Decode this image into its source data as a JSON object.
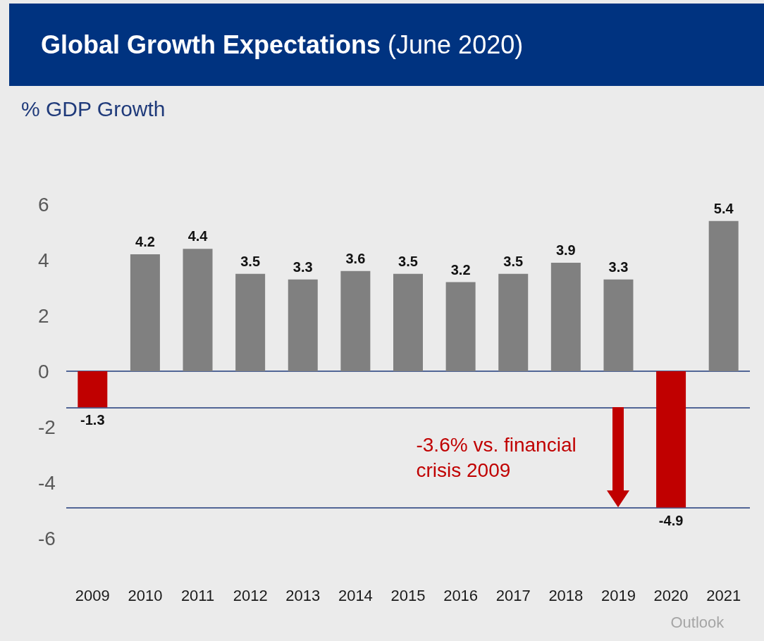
{
  "chart_data": {
    "type": "bar",
    "title": "Global Growth Expectations",
    "subtitle": "(June 2020)",
    "ylabel": "% GDP Growth",
    "categories": [
      "2009",
      "2010",
      "2011",
      "2012",
      "2013",
      "2014",
      "2015",
      "2016",
      "2017",
      "2018",
      "2019",
      "2020",
      "2021"
    ],
    "values": [
      -1.3,
      4.2,
      4.4,
      3.5,
      3.3,
      3.6,
      3.5,
      3.2,
      3.5,
      3.9,
      3.3,
      -4.9,
      5.4
    ],
    "colors": [
      "#c00000",
      "#808080",
      "#808080",
      "#808080",
      "#808080",
      "#808080",
      "#808080",
      "#808080",
      "#808080",
      "#808080",
      "#808080",
      "#c00000",
      "#808080"
    ],
    "ylim": [
      -6,
      6
    ],
    "yticks": [
      -6,
      -4,
      -2,
      0,
      2,
      4,
      6
    ],
    "grid": false,
    "data_labels": true,
    "ref_lines": [
      {
        "axis": "y",
        "value": 0,
        "color": "#1f3a7a"
      },
      {
        "axis": "y",
        "value": -1.3,
        "color": "#1f3a7a"
      },
      {
        "axis": "y",
        "value": -4.9,
        "color": "#1f3a7a"
      }
    ],
    "annotations": [
      "-3.6% vs. financial crisis 2009",
      "Outlook"
    ]
  }
}
